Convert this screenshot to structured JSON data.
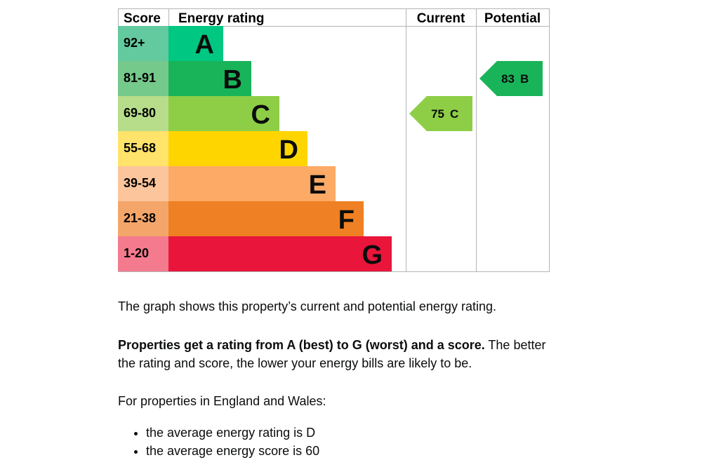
{
  "epc": {
    "headers": {
      "score": "Score",
      "rating": "Energy rating",
      "current": "Current",
      "potential": "Potential"
    },
    "bands": [
      {
        "score": "92+",
        "letter": "A"
      },
      {
        "score": "81-91",
        "letter": "B"
      },
      {
        "score": "69-80",
        "letter": "C"
      },
      {
        "score": "55-68",
        "letter": "D"
      },
      {
        "score": "39-54",
        "letter": "E"
      },
      {
        "score": "21-38",
        "letter": "F"
      },
      {
        "score": "1-20",
        "letter": "G"
      }
    ],
    "current": {
      "value": 75,
      "letter": "C"
    },
    "potential": {
      "value": 83,
      "letter": "B"
    }
  },
  "text": {
    "intro": "The graph shows this property’s current and potential energy rating.",
    "bold": "Properties get a rating from A (best) to G (worst) and a score.",
    "rest": " The better the rating and score, the lower your energy bills are likely to be.",
    "region": "For properties in England and Wales:",
    "bullets": [
      "the average energy rating is D",
      "the average energy score is 60"
    ]
  }
}
